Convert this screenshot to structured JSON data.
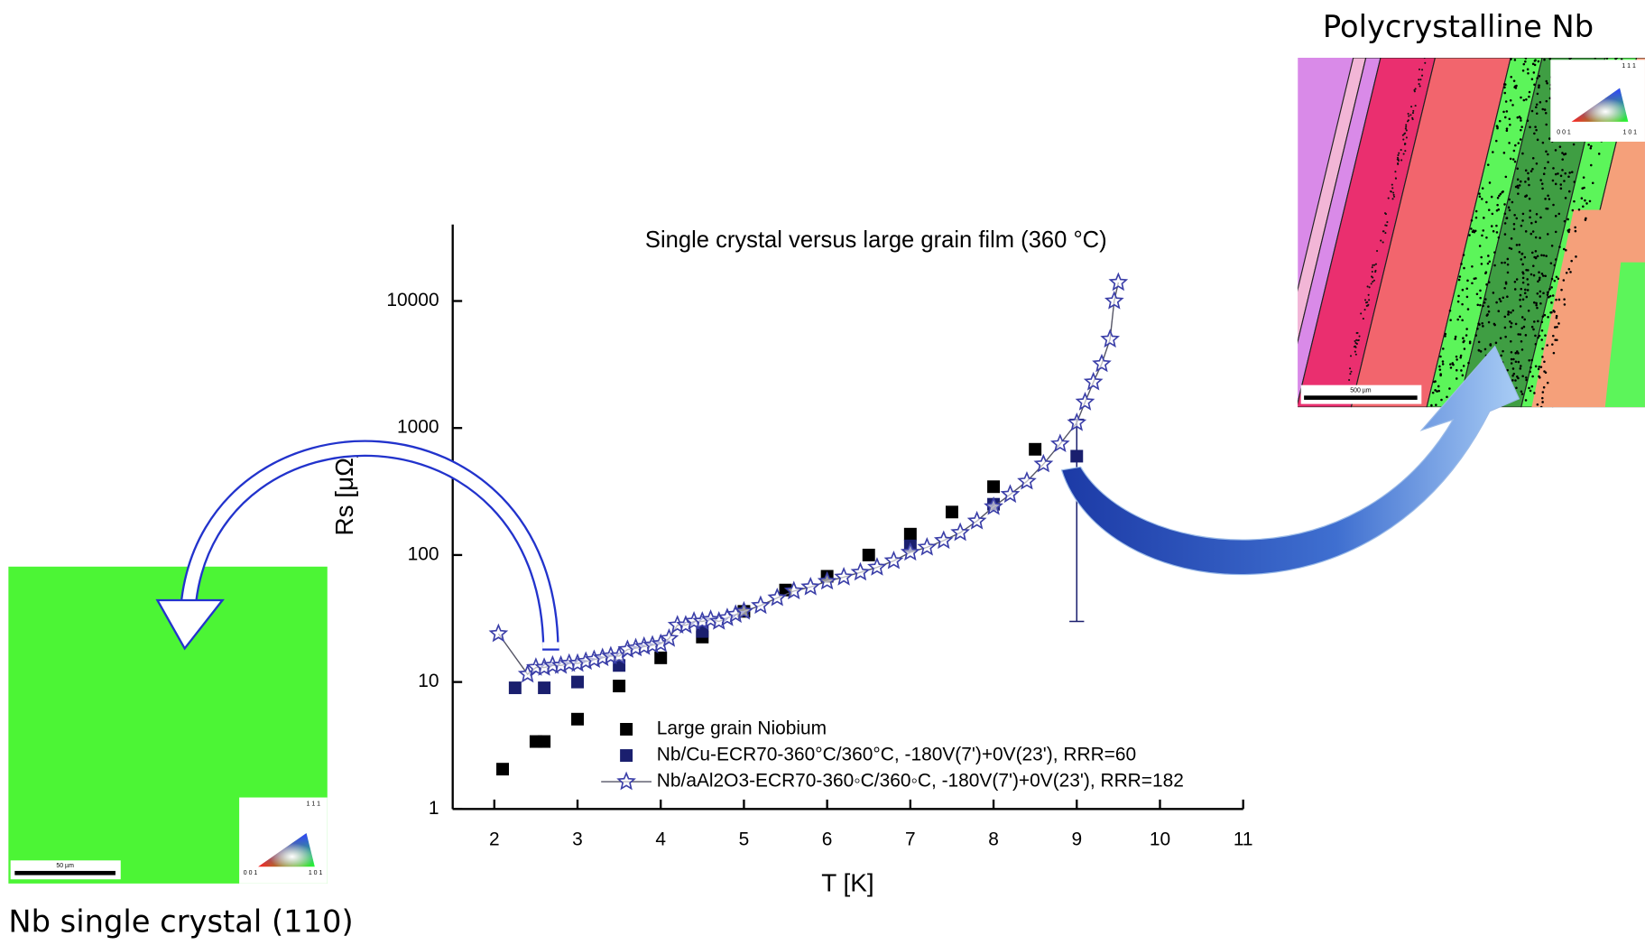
{
  "top_caption": "Polycrystalline Nb",
  "bottom_caption": "Nb single crystal (110)",
  "left_image": {
    "scale_bar": "50 µm",
    "triangle_labels": [
      "1 1 1",
      "0 0 1",
      "1 0 1"
    ]
  },
  "right_image": {
    "scale_bar": "500 µm",
    "triangle_labels": [
      "1 1 1",
      "0 0 1",
      "1 0 1"
    ]
  },
  "chart_data": {
    "type": "scatter",
    "title": "Single crystal versus large grain film (360 °C)",
    "x_label": "T [K]",
    "y_label": "Rs [μΩ]",
    "xlim": [
      1.5,
      11
    ],
    "ylim": [
      1,
      40000
    ],
    "yscale": "log",
    "xticks": [
      2,
      3,
      4,
      5,
      6,
      7,
      8,
      9,
      10,
      11
    ],
    "yticks": [
      1,
      10,
      100,
      1000,
      10000
    ],
    "legend": "lower center",
    "series": [
      {
        "name": "Large grain Niobium",
        "color": "#000000",
        "marker": "square",
        "line": false,
        "x": [
          2.1,
          2.5,
          2.6,
          3.0,
          3.5,
          4.0,
          4.5,
          5.0,
          5.5,
          6.0,
          6.5,
          7.0,
          7.5,
          8.0,
          8.5
        ],
        "values": [
          2.06,
          3.4,
          3.4,
          5.1,
          9.3,
          15.5,
          22.6,
          36,
          53,
          68,
          100,
          146,
          218,
          345,
          680
        ]
      },
      {
        "name": "Nb/Cu-ECR70-360°C/360°C, -180V(7')+0V(23'), RRR=60",
        "color": "#1a1f6e",
        "marker": "square",
        "line": false,
        "x": [
          2.25,
          2.6,
          3.0,
          3.5,
          4.5,
          7.0,
          8.0,
          9.0
        ],
        "values": [
          9,
          9,
          10,
          13.5,
          25,
          118,
          251,
          600
        ],
        "errors": [
          null,
          null,
          null,
          null,
          null,
          null,
          null,
          570
        ]
      },
      {
        "name": "Nb/aAl2O3-ECR70-360◦C/360◦C, -180V(7')+0V(23'), RRR=182",
        "color": "#3b3fa8",
        "line_color": "#555566",
        "marker": "star",
        "line": true,
        "x": [
          2.05,
          2.4,
          2.5,
          2.6,
          2.7,
          2.8,
          2.9,
          3.0,
          3.1,
          3.2,
          3.3,
          3.4,
          3.5,
          3.6,
          3.7,
          3.8,
          3.9,
          4.0,
          4.1,
          4.2,
          4.3,
          4.4,
          4.5,
          4.6,
          4.7,
          4.8,
          4.9,
          5.0,
          5.2,
          5.4,
          5.6,
          5.8,
          6.0,
          6.2,
          6.4,
          6.6,
          6.8,
          7.0,
          7.2,
          7.4,
          7.6,
          7.8,
          8.0,
          8.2,
          8.4,
          8.6,
          8.8,
          9.0,
          9.1,
          9.2,
          9.3,
          9.4,
          9.45,
          9.5
        ],
        "values": [
          24,
          11.5,
          13,
          13,
          13.5,
          13.5,
          14,
          14,
          14.5,
          15,
          15.5,
          16,
          16,
          18,
          18.5,
          19,
          19.5,
          20,
          22,
          28,
          28,
          30,
          30,
          31,
          30,
          32,
          34,
          36,
          40,
          46,
          52,
          56,
          62,
          67,
          73,
          80,
          90,
          105,
          115,
          130,
          150,
          185,
          240,
          300,
          380,
          520,
          750,
          1100,
          1600,
          2300,
          3200,
          5000,
          10000,
          14000
        ]
      }
    ]
  }
}
